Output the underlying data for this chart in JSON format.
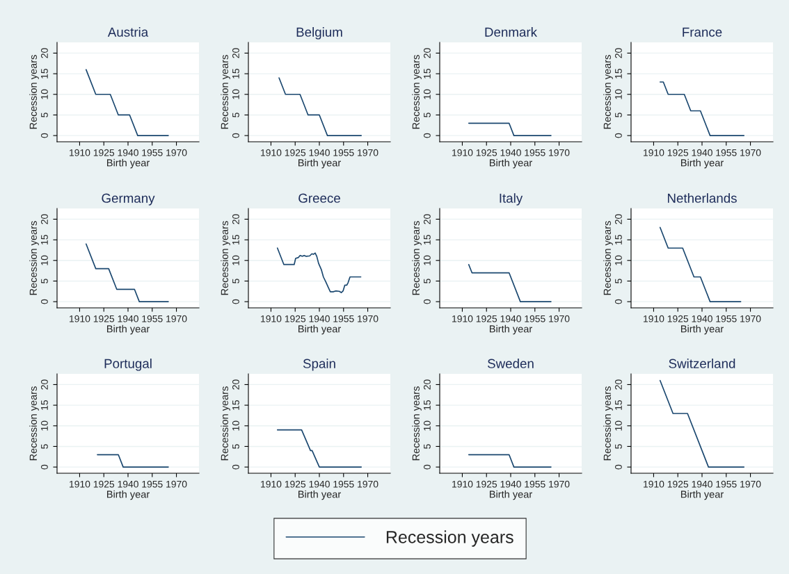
{
  "chart_data": [
    {
      "type": "line",
      "title": "Austria",
      "xlabel": "Birth year",
      "ylabel": "Recession years",
      "xlim": [
        1896,
        1984
      ],
      "xticks": [
        1910,
        1925,
        1940,
        1955,
        1970
      ],
      "ylim": [
        -1.5,
        22.6
      ],
      "yticks": [
        0,
        5,
        10,
        15,
        20
      ],
      "grid": "y",
      "legend": "bottom",
      "series": [
        {
          "name": "Recession years",
          "color": "#1a476f",
          "x": [
            1914,
            1920,
            1929,
            1934,
            1941,
            1946,
            1965
          ],
          "values": [
            16,
            10,
            10,
            5,
            5,
            0,
            0
          ]
        }
      ]
    },
    {
      "type": "line",
      "title": "Belgium",
      "xlabel": "Birth year",
      "ylabel": "Recession years",
      "xlim": [
        1896,
        1984
      ],
      "xticks": [
        1910,
        1925,
        1940,
        1955,
        1970
      ],
      "ylim": [
        -1.5,
        22.6
      ],
      "yticks": [
        0,
        5,
        10,
        15,
        20
      ],
      "grid": "y",
      "series": [
        {
          "color": "#1a476f",
          "x": [
            1915,
            1919,
            1928,
            1933,
            1940,
            1945,
            1966
          ],
          "values": [
            14,
            10,
            10,
            5,
            5,
            0,
            0
          ]
        }
      ]
    },
    {
      "type": "line",
      "title": "Denmark",
      "xlabel": "Birth year",
      "ylabel": "Recession years",
      "xlim": [
        1896,
        1984
      ],
      "xticks": [
        1910,
        1925,
        1940,
        1955,
        1970
      ],
      "ylim": [
        -1.5,
        22.6
      ],
      "yticks": [
        0,
        5,
        10,
        15,
        20
      ],
      "grid": "y",
      "series": [
        {
          "color": "#1a476f",
          "x": [
            1914,
            1939,
            1942,
            1965
          ],
          "values": [
            3,
            3,
            0,
            0
          ]
        }
      ]
    },
    {
      "type": "line",
      "title": "France",
      "xlabel": "Birth year",
      "ylabel": "Recession years",
      "xlim": [
        1896,
        1984
      ],
      "xticks": [
        1910,
        1925,
        1940,
        1955,
        1970
      ],
      "ylim": [
        -1.5,
        22.6
      ],
      "yticks": [
        0,
        5,
        10,
        15,
        20
      ],
      "grid": "y",
      "series": [
        {
          "color": "#1a476f",
          "x": [
            1914,
            1916,
            1919,
            1929,
            1933,
            1939,
            1945,
            1966
          ],
          "values": [
            13,
            13,
            10,
            10,
            6,
            6,
            0,
            0
          ]
        }
      ]
    },
    {
      "type": "line",
      "title": "Germany",
      "xlabel": "Birth year",
      "ylabel": "Recession years",
      "xlim": [
        1896,
        1984
      ],
      "xticks": [
        1910,
        1925,
        1940,
        1955,
        1970
      ],
      "ylim": [
        -1.5,
        22.6
      ],
      "yticks": [
        0,
        5,
        10,
        15,
        20
      ],
      "grid": "y",
      "series": [
        {
          "color": "#1a476f",
          "x": [
            1914,
            1920,
            1928,
            1933,
            1944,
            1947,
            1965
          ],
          "values": [
            14,
            8,
            8,
            3,
            3,
            0,
            0
          ]
        }
      ]
    },
    {
      "type": "line",
      "title": "Greece",
      "xlabel": "Birth year",
      "ylabel": "Recession years",
      "xlim": [
        1896,
        1984
      ],
      "xticks": [
        1910,
        1925,
        1940,
        1955,
        1970
      ],
      "ylim": [
        -1.5,
        22.6
      ],
      "yticks": [
        0,
        5,
        10,
        15,
        20
      ],
      "grid": "y",
      "series": [
        {
          "color": "#1a476f",
          "x": [
            1914,
            1918,
            1924.4,
            1925.3,
            1927,
            1928,
            1929.4,
            1930.7,
            1931.7,
            1934,
            1935.3,
            1936.4,
            1937.4,
            1938.4,
            1939.5,
            1941.2,
            1942.5,
            1944,
            1945.5,
            1946.8,
            1948.6,
            1950.1,
            1952.4,
            1953.6,
            1954.7,
            1955.8,
            1957,
            1957.8,
            1959,
            1965.7
          ],
          "values": [
            13,
            9,
            9,
            10.5,
            10.7,
            11.2,
            11,
            11.2,
            11,
            11.1,
            11.6,
            11.5,
            11.8,
            11,
            9.3,
            7.8,
            6,
            4.8,
            3.5,
            2.4,
            2.4,
            2.6,
            2.5,
            2.2,
            2.6,
            4,
            4,
            4.6,
            6,
            6
          ]
        }
      ]
    },
    {
      "type": "line",
      "title": "Italy",
      "xlabel": "Birth year",
      "ylabel": "Recession years",
      "xlim": [
        1896,
        1984
      ],
      "xticks": [
        1910,
        1925,
        1940,
        1955,
        1970
      ],
      "ylim": [
        -1.5,
        22.6
      ],
      "yticks": [
        0,
        5,
        10,
        15,
        20
      ],
      "grid": "y",
      "series": [
        {
          "color": "#1a476f",
          "x": [
            1914,
            1916,
            1939,
            1946,
            1965
          ],
          "values": [
            9,
            7,
            7,
            0,
            0
          ]
        }
      ]
    },
    {
      "type": "line",
      "title": "Netherlands",
      "xlabel": "Birth year",
      "ylabel": "Recession years",
      "xlim": [
        1896,
        1984
      ],
      "xticks": [
        1910,
        1925,
        1940,
        1955,
        1970
      ],
      "ylim": [
        -1.5,
        22.6
      ],
      "yticks": [
        0,
        5,
        10,
        15,
        20
      ],
      "grid": "y",
      "series": [
        {
          "color": "#1a476f",
          "x": [
            1914,
            1919,
            1928,
            1935,
            1939,
            1945,
            1964
          ],
          "values": [
            18,
            13,
            13,
            6,
            6,
            0,
            0
          ]
        }
      ]
    },
    {
      "type": "line",
      "title": "Portugal",
      "xlabel": "Birth year",
      "ylabel": "Recession years",
      "xlim": [
        1896,
        1984
      ],
      "xticks": [
        1910,
        1925,
        1940,
        1955,
        1970
      ],
      "ylim": [
        -1.5,
        22.6
      ],
      "yticks": [
        0,
        5,
        10,
        15,
        20
      ],
      "grid": "y",
      "series": [
        {
          "color": "#1a476f",
          "x": [
            1921,
            1934,
            1937,
            1965
          ],
          "values": [
            3,
            3,
            0,
            0
          ]
        }
      ]
    },
    {
      "type": "line",
      "title": "Spain",
      "xlabel": "Birth year",
      "ylabel": "Recession years",
      "xlim": [
        1896,
        1984
      ],
      "xticks": [
        1910,
        1925,
        1940,
        1955,
        1970
      ],
      "ylim": [
        -1.5,
        22.6
      ],
      "yticks": [
        0,
        5,
        10,
        15,
        20
      ],
      "grid": "y",
      "series": [
        {
          "color": "#1a476f",
          "x": [
            1914,
            1929,
            1934.5,
            1935.5,
            1940,
            1966
          ],
          "values": [
            9,
            9,
            4,
            4,
            0,
            0
          ]
        }
      ]
    },
    {
      "type": "line",
      "title": "Sweden",
      "xlabel": "Birth year",
      "ylabel": "Recession years",
      "xlim": [
        1896,
        1984
      ],
      "xticks": [
        1910,
        1925,
        1940,
        1955,
        1970
      ],
      "ylim": [
        -1.5,
        22.6
      ],
      "yticks": [
        0,
        5,
        10,
        15,
        20
      ],
      "grid": "y",
      "series": [
        {
          "color": "#1a476f",
          "x": [
            1914,
            1939,
            1942,
            1965
          ],
          "values": [
            3,
            3,
            0,
            0
          ]
        }
      ]
    },
    {
      "type": "line",
      "title": "Switzerland",
      "xlabel": "Birth year",
      "ylabel": "Recession years",
      "xlim": [
        1896,
        1984
      ],
      "xticks": [
        1910,
        1925,
        1940,
        1955,
        1970
      ],
      "ylim": [
        -1.5,
        22.6
      ],
      "yticks": [
        0,
        5,
        10,
        15,
        20
      ],
      "grid": "y",
      "series": [
        {
          "color": "#1a476f",
          "x": [
            1914,
            1922,
            1931,
            1944,
            1966
          ],
          "values": [
            21,
            13,
            13,
            0,
            0
          ]
        }
      ]
    }
  ]
}
